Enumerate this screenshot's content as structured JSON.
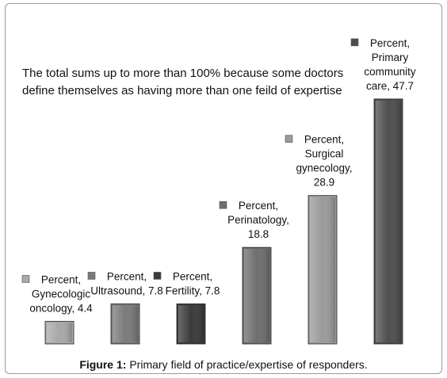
{
  "chart_data": {
    "type": "bar",
    "categories": [
      "Gynecologic oncology",
      "Ultrasound",
      "Fertility",
      "Perinatology",
      "Surgical gynecology",
      "Primary community care"
    ],
    "values": [
      4.4,
      7.8,
      7.8,
      18.8,
      28.9,
      47.7
    ],
    "series_name": "Percent",
    "data_labels": [
      [
        "Percent,",
        "Gynecologic",
        "oncology, 4.4"
      ],
      [
        "Percent,",
        "Ultrasound, 7.8"
      ],
      [
        "Percent,",
        "Fertility, 7.8"
      ],
      [
        "Percent,",
        "Perinatology,",
        "18.8"
      ],
      [
        "Percent,",
        "Surgical",
        "gynecology,",
        "28.9"
      ],
      [
        "Percent,",
        "Primary",
        "community",
        "care, 47.7"
      ]
    ],
    "colors": [
      "#a8a8a8",
      "#7a7a7a",
      "#3a3a3a",
      "#6e6e6e",
      "#9a9a9a",
      "#4e4e4e"
    ],
    "annotation": [
      "The total sums up to more than 100% because some doctors",
      "define themselves as having more than one feild of expertise"
    ],
    "ylim": [
      0,
      50
    ],
    "grid": false,
    "legend": "inline"
  },
  "caption": {
    "label": "Figure 1:",
    "text": " Primary field of practice/expertise of responders."
  }
}
